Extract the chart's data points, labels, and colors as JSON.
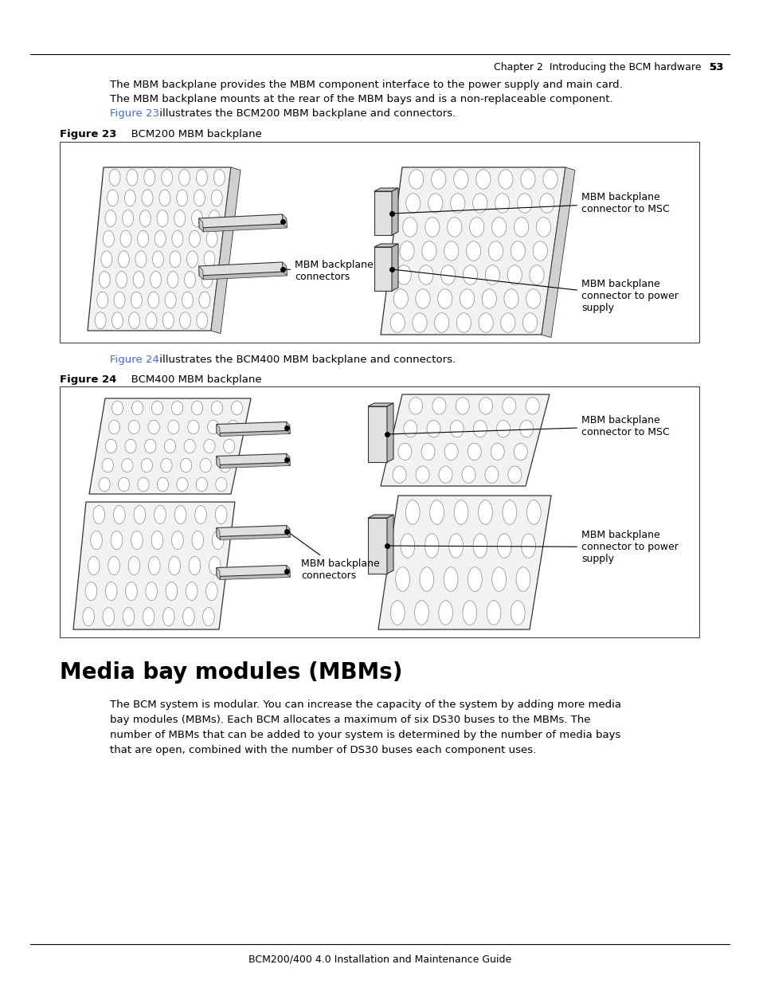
{
  "page_header_text": "Chapter 2  Introducing the BCM hardware   53",
  "page_footer_text": "BCM200/400 4.0 Installation and Maintenance Guide",
  "body_text_1a": "The MBM backplane provides the MBM component interface to the power supply and main card.",
  "body_text_1b": "The MBM backplane mounts at the rear of the MBM bays and is a non-replaceable component.",
  "body_text_1_link": "Figure 23",
  "body_text_1_after": " illustrates the BCM200 MBM backplane and connectors.",
  "fig24_link_text": "Figure 24",
  "fig24_link_after": " illustrates the BCM400 MBM backplane and connectors.",
  "section_title": "Media bay modules (MBMs)",
  "section_body": "The BCM system is modular. You can increase the capacity of the system by adding more media\nbay modules (MBMs). Each BCM allocates a maximum of six DS30 buses to the MBMs. The\nnumber of MBMs that can be added to your system is determined by the number of media bays\nthat are open, combined with the number of DS30 buses each component uses.",
  "link_color": "#4169E1",
  "text_color": "#000000",
  "bg_color": "#ffffff",
  "label_mbm_connectors": "MBM backplane\nconnectors",
  "label_mbm_msc": "MBM backplane\nconnector to MSC",
  "label_mbm_power": "MBM backplane\nconnector to power\nsupply"
}
